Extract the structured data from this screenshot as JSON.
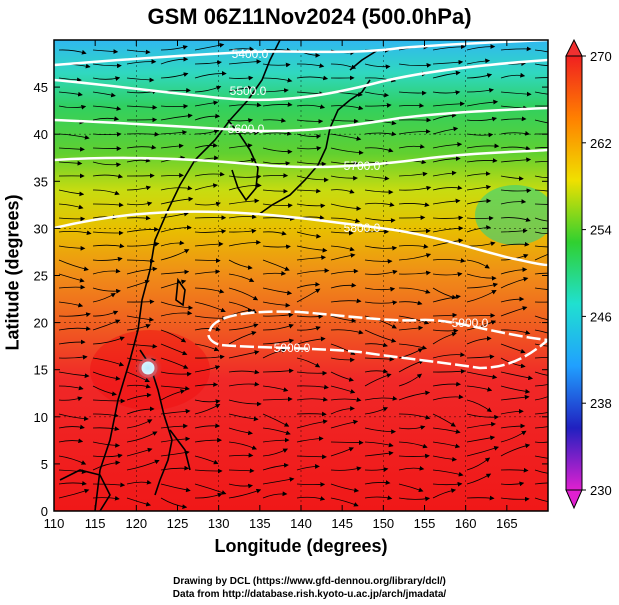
{
  "title": "GSM 06Z11Nov2024 (500.0hPa)",
  "xlabel": "Longitude (degrees)",
  "ylabel": "Latitude  (degrees)",
  "x_ticks": [
    "110",
    "115",
    "120",
    "125",
    "130",
    "135",
    "140",
    "145",
    "150",
    "155",
    "160",
    "165"
  ],
  "y_ticks": [
    "0",
    "5",
    "10",
    "15",
    "20",
    "25",
    "30",
    "35",
    "40",
    "45"
  ],
  "colorbar": {
    "ticks": [
      "230",
      "238",
      "246",
      "254",
      "262",
      "270"
    ],
    "min": 230,
    "max": 270,
    "colors": [
      "#e020d0",
      "#2020c0",
      "#20a0ff",
      "#20e0d0",
      "#30d030",
      "#f0e000",
      "#ff8000",
      "#f02020"
    ]
  },
  "contours": [
    {
      "label": "5400.0"
    },
    {
      "label": "5500.0"
    },
    {
      "label": "5600.0"
    },
    {
      "label": "5700.0"
    },
    {
      "label": "5800.0"
    },
    {
      "label": "5900.0"
    },
    {
      "label": "5900.0"
    }
  ],
  "credits": {
    "line1": "Drawing by DCL (https://www.gfd-dennou.org/library/dcl/)",
    "line2": "Data from http://database.rish.kyoto-u.ac.jp/arch/jmadata/"
  }
}
